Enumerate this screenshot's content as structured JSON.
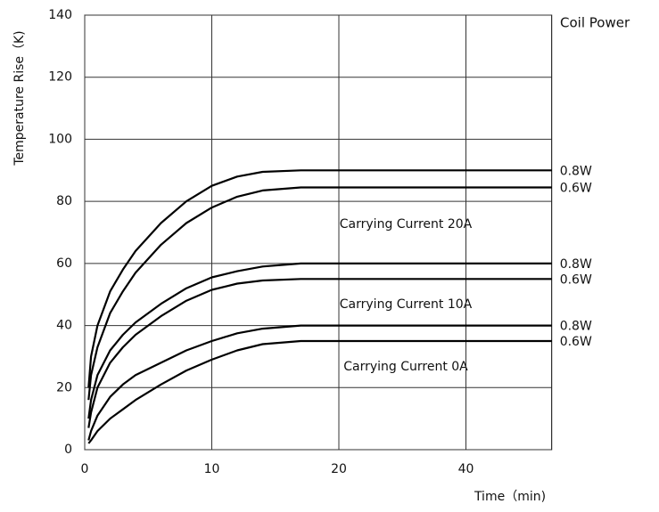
{
  "chart_data": {
    "type": "line",
    "ylabel": "Temperature Rise（K)",
    "xlabel": "Time（min)",
    "legend_title": "Coil Power",
    "annotations": [
      "Carrying Current 20A",
      "Carrying Current 10A",
      "Carrying Current 0A"
    ],
    "x": [
      0.3,
      0.5,
      1,
      2,
      3,
      4,
      6,
      8,
      10,
      12,
      14,
      17,
      53.5
    ],
    "xlim": [
      0,
      53.5
    ],
    "xticks": [
      0,
      10,
      20,
      40
    ],
    "ylim": [
      0,
      140
    ],
    "yticks": [
      0,
      20,
      40,
      60,
      80,
      100,
      120,
      140
    ],
    "grid": true,
    "series": [
      {
        "name": "0.8W",
        "color": "#000000",
        "values": [
          20,
          30,
          40,
          51,
          58,
          64,
          73,
          80,
          85,
          88,
          89.5,
          90,
          90
        ]
      },
      {
        "name": "0.6W",
        "color": "#000000",
        "values": [
          16,
          24,
          33,
          44,
          51,
          57,
          66,
          73,
          78,
          81.5,
          83.5,
          84.5,
          84.5
        ]
      },
      {
        "name": "0.8W",
        "color": "#000000",
        "values": [
          10,
          16,
          24,
          32,
          37,
          41,
          47,
          52,
          55.5,
          57.5,
          59,
          60,
          60
        ]
      },
      {
        "name": "0.6W",
        "color": "#000000",
        "values": [
          7,
          12,
          20,
          28,
          33,
          37,
          43,
          48,
          51.5,
          53.5,
          54.5,
          55,
          55
        ]
      },
      {
        "name": "0.8W",
        "color": "#000000",
        "values": [
          3,
          6,
          11,
          17,
          21,
          24,
          28,
          32,
          35,
          37.5,
          39,
          40,
          40
        ]
      },
      {
        "name": "0.6W",
        "color": "#000000",
        "values": [
          2,
          3,
          6,
          10,
          13,
          16,
          21,
          25.5,
          29,
          32,
          34,
          35,
          35
        ]
      }
    ]
  }
}
